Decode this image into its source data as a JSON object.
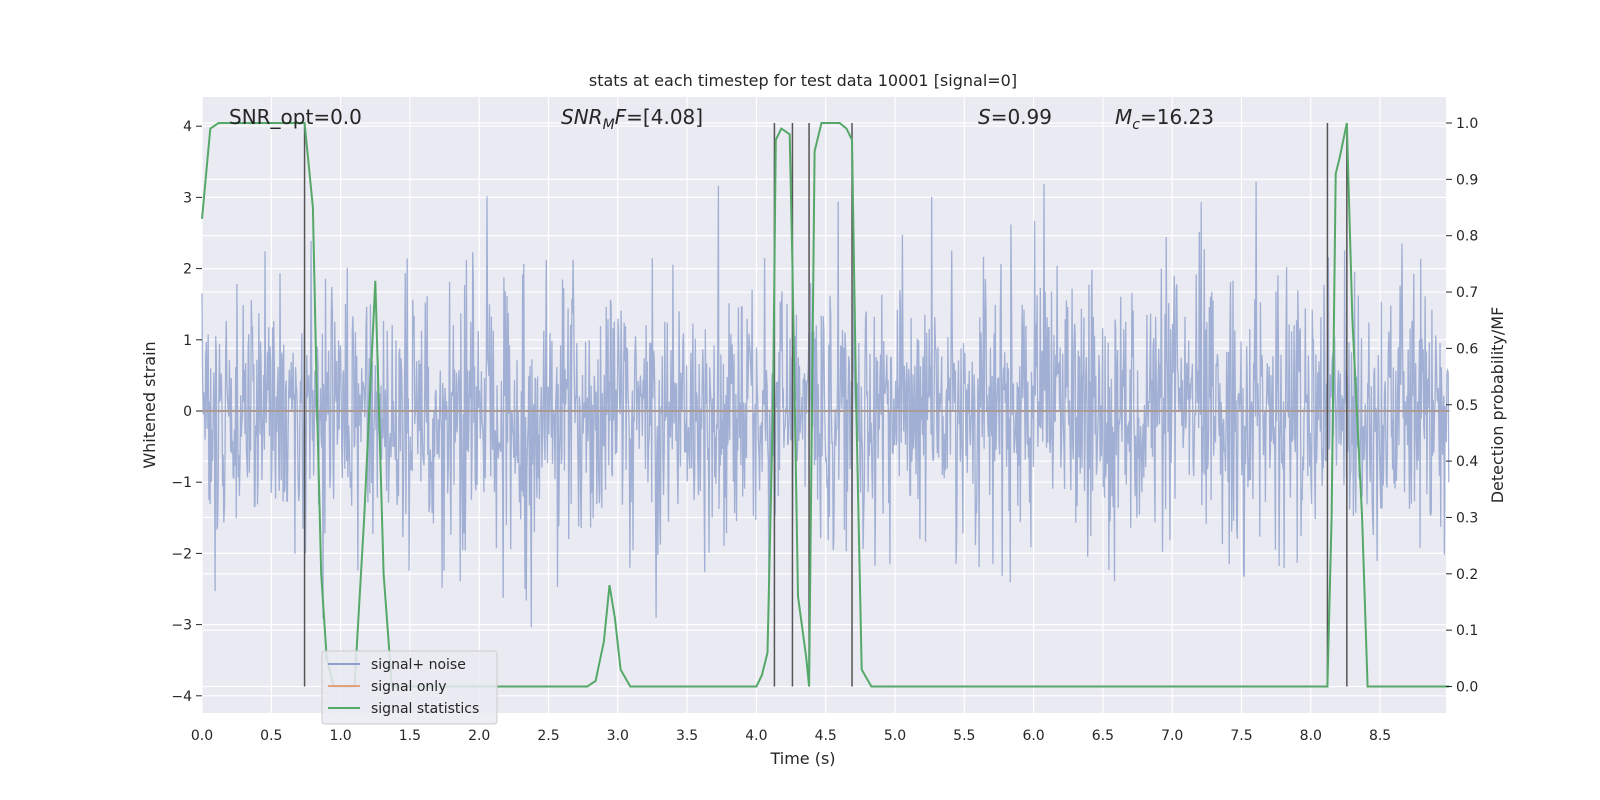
{
  "chart_data": {
    "type": "line",
    "title": "stats at each timestep for test data 10001 [signal=0]",
    "xlabel": "Time (s)",
    "ylabel_left": "Whitened strain",
    "ylabel_right": "Detection probability/MF",
    "xlim": [
      0.0,
      9.0
    ],
    "ylim_left": [
      -4.25,
      4.35
    ],
    "ylim_right": [
      -0.05,
      1.03
    ],
    "x_ticks": [
      "0.0",
      "0.5",
      "1.0",
      "1.5",
      "2.0",
      "2.5",
      "3.0",
      "3.5",
      "4.0",
      "4.5",
      "5.0",
      "5.5",
      "6.0",
      "6.5",
      "7.0",
      "7.5",
      "8.0",
      "8.5"
    ],
    "y_left_ticks": [
      "4",
      "3",
      "2",
      "1",
      "0",
      "−1",
      "−2",
      "−3",
      "−4"
    ],
    "y_right_ticks": [
      "1.0",
      "0.9",
      "0.8",
      "0.7",
      "0.6",
      "0.5",
      "0.4",
      "0.3",
      "0.2",
      "0.1",
      "0.0"
    ],
    "grid": true,
    "legend_placement": "lower-left",
    "annotations": [
      "SNR_opt=0.0",
      "F=[4.08]",
      "=0.99",
      "=16.23"
    ],
    "annotation_parts": {
      "snrmf_main": "SNR",
      "snrmf_sub": "M",
      "s_main": "S",
      "mc_main": "M",
      "mc_sub": "c"
    },
    "series": [
      {
        "name": "signal+ noise",
        "axis": "left",
        "color": "#8da0cb",
        "description": "dense whitened noise trace, roughly within -2.6..3.0 with spikes to about -3.9..4.0"
      },
      {
        "name": "signal only",
        "axis": "left",
        "color": "#e5a07c",
        "values_note": "zero",
        "value": 0
      },
      {
        "name": "signal statistics",
        "axis": "right",
        "color": "#55a868",
        "x": [
          0.0,
          0.06,
          0.12,
          0.2,
          0.3,
          0.4,
          0.5,
          0.6,
          0.68,
          0.74,
          0.8,
          0.83,
          0.86,
          0.9,
          0.95,
          1.0,
          1.1,
          1.17,
          1.25,
          1.31,
          1.37,
          1.4,
          1.5,
          2.0,
          2.5,
          2.78,
          2.84,
          2.9,
          2.94,
          2.98,
          3.02,
          3.09,
          3.5,
          4.0,
          4.04,
          4.08,
          4.12,
          4.14,
          4.18,
          4.24,
          4.26,
          4.3,
          4.36,
          4.38,
          4.42,
          4.47,
          4.52,
          4.6,
          4.65,
          4.69,
          4.72,
          4.76,
          4.83,
          5.0,
          6.0,
          7.0,
          8.0,
          8.1,
          8.12,
          8.15,
          8.18,
          8.21,
          8.26,
          8.3,
          8.37,
          8.41,
          8.47,
          8.5,
          9.0
        ],
        "y": [
          0.83,
          0.99,
          1.0,
          1.0,
          1.0,
          1.0,
          1.0,
          1.0,
          1.0,
          1.0,
          0.85,
          0.5,
          0.2,
          0.05,
          0.0,
          0.0,
          0.0,
          0.3,
          0.72,
          0.2,
          0.0,
          0.0,
          0.0,
          0.0,
          0.0,
          0.0,
          0.01,
          0.08,
          0.18,
          0.12,
          0.03,
          0.0,
          0.0,
          0.0,
          0.02,
          0.06,
          0.5,
          0.97,
          0.99,
          0.98,
          0.75,
          0.16,
          0.05,
          0.0,
          0.95,
          1.0,
          1.0,
          1.0,
          0.99,
          0.97,
          0.5,
          0.03,
          0.0,
          0.0,
          0.0,
          0.0,
          0.0,
          0.0,
          0.0,
          0.3,
          0.91,
          0.94,
          1.0,
          0.65,
          0.3,
          0.0,
          0.0,
          0.0,
          0.0
        ]
      }
    ],
    "vertical_markers": {
      "color": "#555555",
      "x": [
        0.74,
        4.13,
        4.26,
        4.38,
        4.69,
        8.12,
        8.26
      ]
    }
  }
}
